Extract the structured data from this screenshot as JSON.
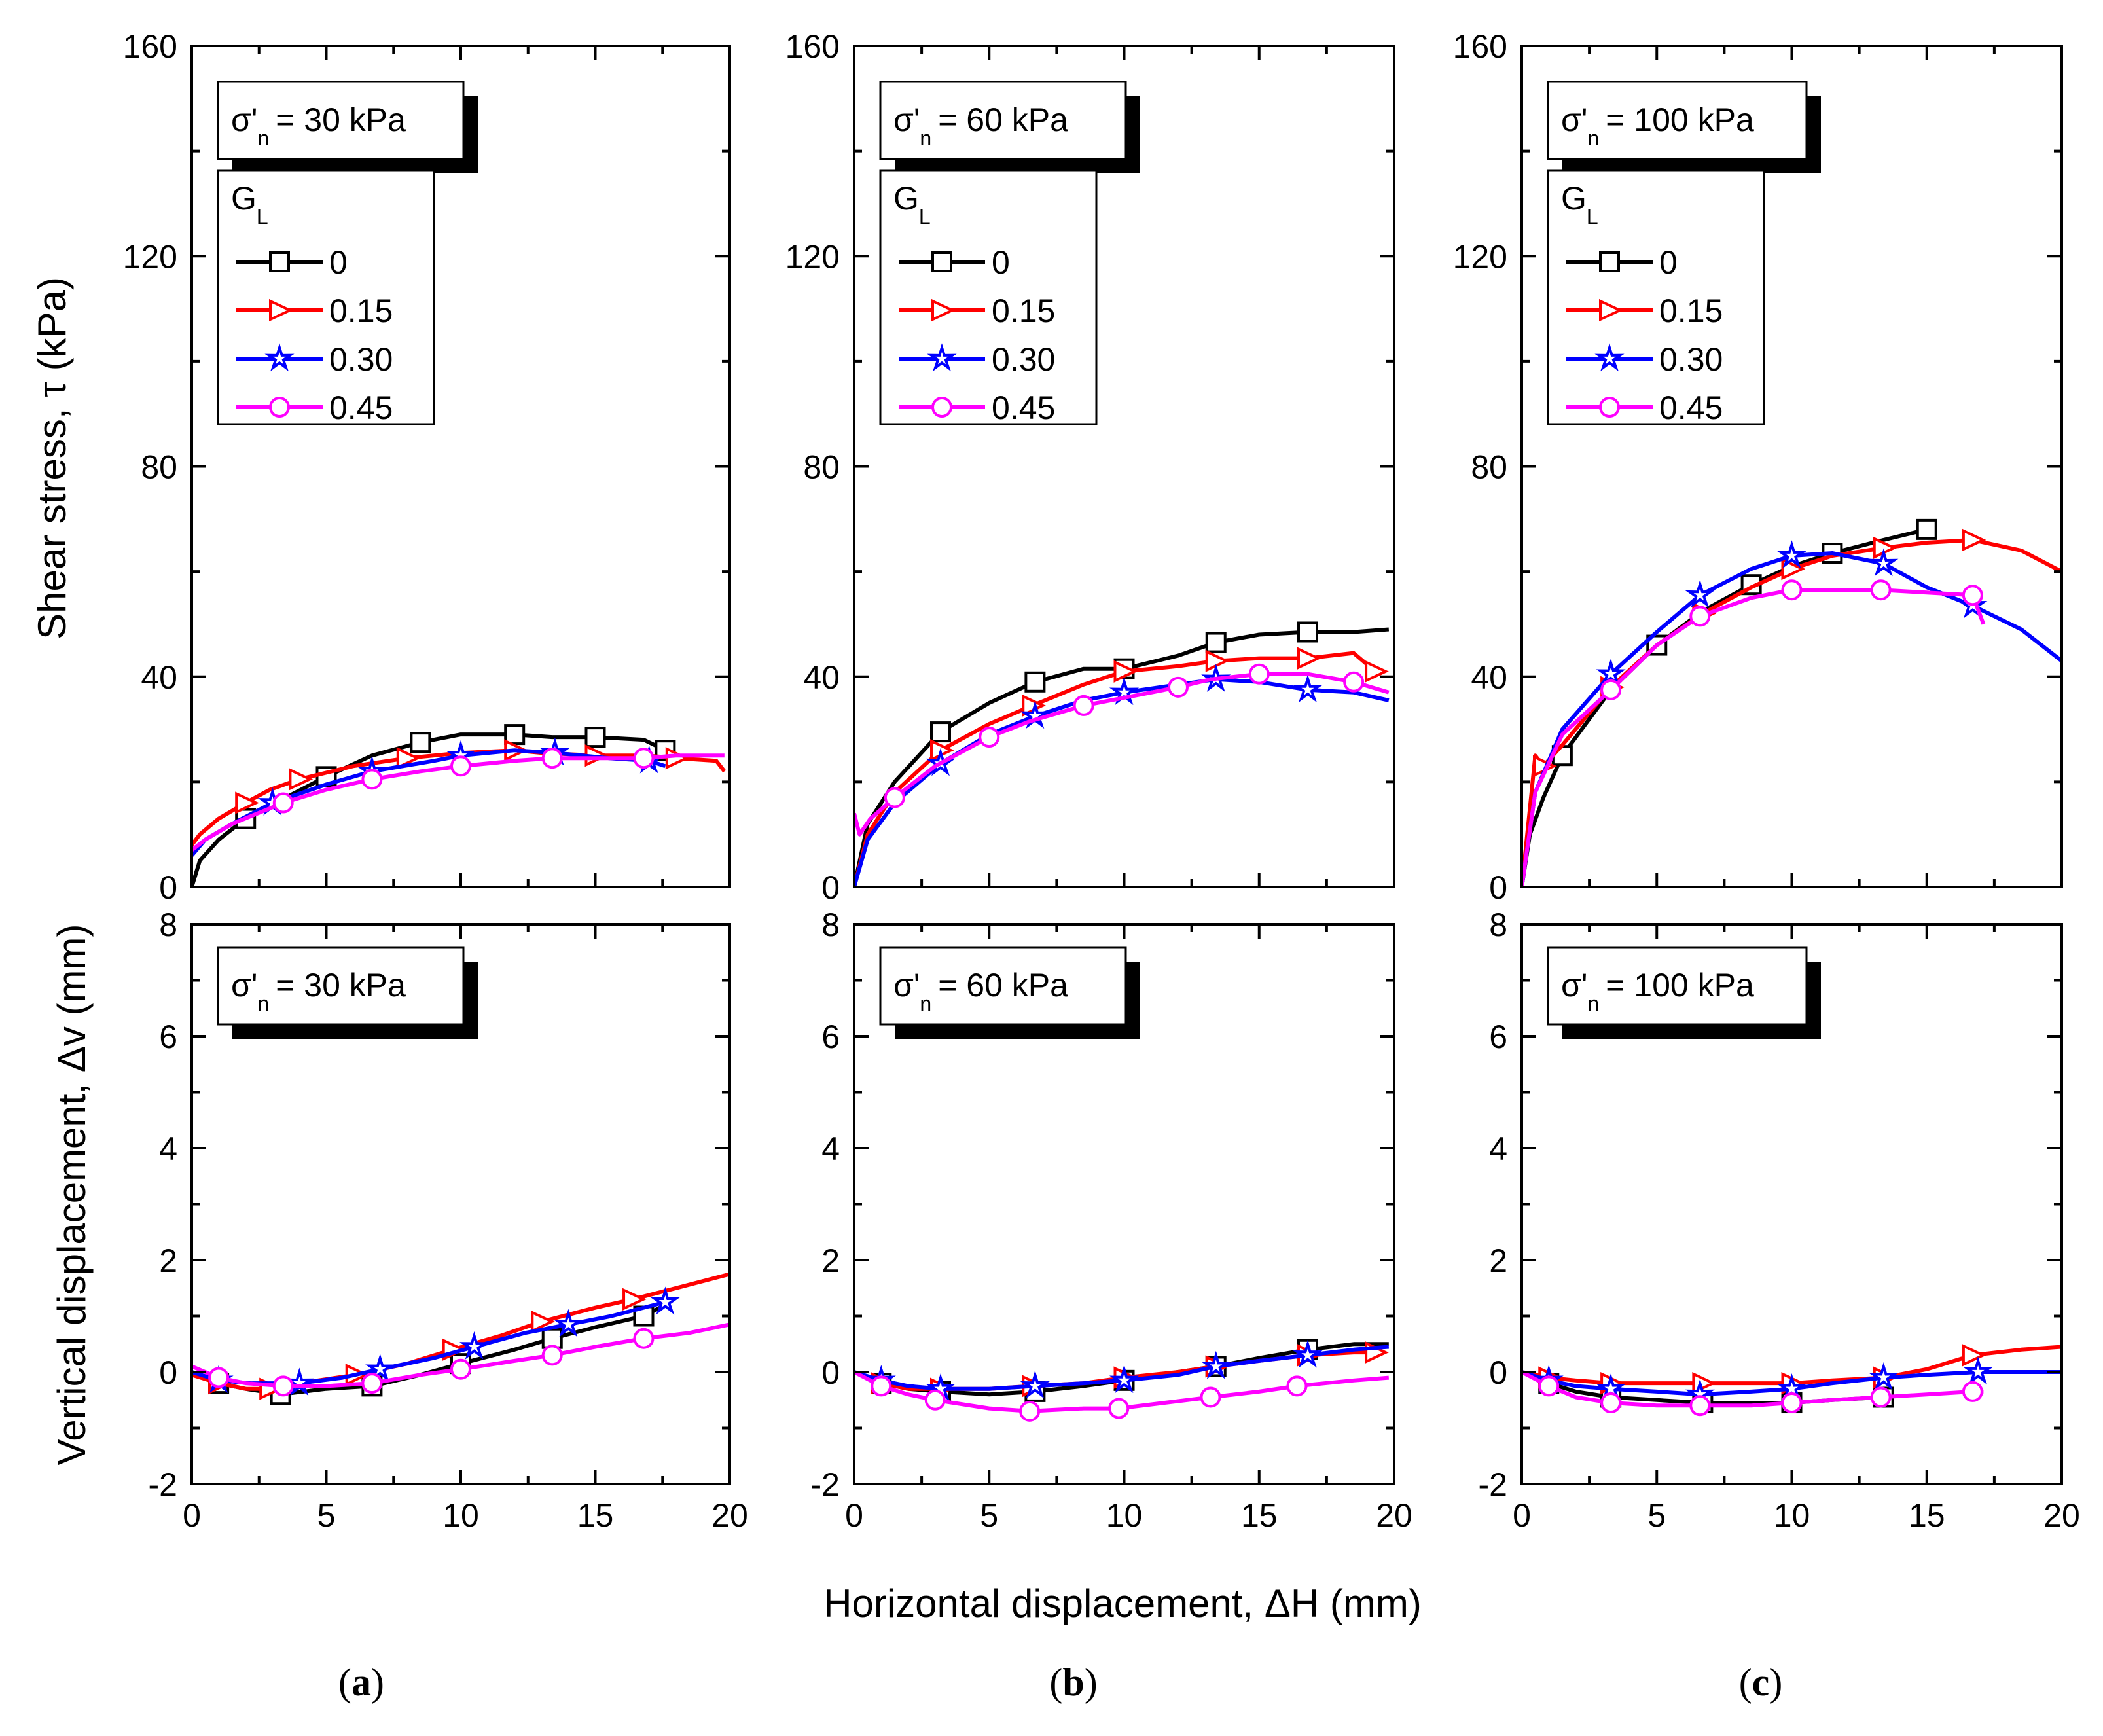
{
  "figure": {
    "ylabel_top": "Shear stress, τ (kPa)",
    "ylabel_bottom": "Vertical displacement, Δv (mm)",
    "xlabel": "Horizontal displacement, ΔH (mm)",
    "legend_title": "G",
    "legend_title_sub": "L",
    "normal_stress_symbol": "σ'",
    "normal_stress_sub": "n",
    "series_colors": {
      "0": "#000000",
      "0.15": "#ff0000",
      "0.30": "#0000ff",
      "0.45": "#ff00ff"
    },
    "series_markers": {
      "0": "square",
      "0.15": "triangle-right",
      "0.30": "star",
      "0.45": "circle"
    }
  },
  "chart_data": [
    {
      "type": "line",
      "panel": "a-shear",
      "annotation": "= 30 kPa",
      "caption": "a",
      "xlim": [
        0,
        20
      ],
      "ylim": [
        0,
        160
      ],
      "xticks": [
        "0",
        "5",
        "10",
        "15",
        "20"
      ],
      "yticks": [
        "0",
        "40",
        "80",
        "120",
        "160"
      ],
      "legend_title": "G_L",
      "series": [
        {
          "name": "0",
          "x": [
            0,
            0.3,
            1,
            2,
            3.3,
            5,
            6.7,
            8.5,
            10,
            12,
            13.4,
            15,
            16.8,
            17.6
          ],
          "values": [
            0,
            5,
            9,
            13,
            16.5,
            21,
            25,
            27.5,
            29,
            29,
            28.5,
            28.5,
            28,
            26
          ]
        },
        {
          "name": "0.15",
          "x": [
            0,
            0.3,
            1,
            2,
            2.9,
            4,
            6,
            8,
            10,
            12,
            13,
            15,
            16.9,
            18,
            19.5,
            19.8
          ],
          "values": [
            8,
            10,
            13,
            16,
            18.5,
            20.5,
            23,
            24.5,
            25.5,
            26,
            25.5,
            25,
            25,
            24.5,
            24,
            22
          ]
        },
        {
          "name": "0.30",
          "x": [
            0,
            0.5,
            1.5,
            3,
            5,
            6.7,
            9,
            10,
            12,
            13.5,
            15.5,
            17,
            17.6
          ],
          "values": [
            6,
            9,
            12,
            16,
            19.5,
            22,
            24,
            25,
            26,
            25.5,
            24.5,
            24,
            23
          ]
        },
        {
          "name": "0.45",
          "x": [
            0,
            0.5,
            1.5,
            3.4,
            5,
            6.7,
            8.5,
            10,
            12,
            13.4,
            15,
            16.8,
            18,
            19.8
          ],
          "values": [
            7,
            9,
            12,
            16,
            18.5,
            20.5,
            22,
            23,
            24,
            24.5,
            24.5,
            24.5,
            25,
            25
          ]
        }
      ]
    },
    {
      "type": "line",
      "panel": "b-shear",
      "annotation": "= 60 kPa",
      "caption": "b",
      "xlim": [
        0,
        20
      ],
      "ylim": [
        0,
        160
      ],
      "xticks": [
        "0",
        "5",
        "10",
        "15",
        "20"
      ],
      "yticks": [
        "0",
        "40",
        "80",
        "120",
        "160"
      ],
      "legend_title": "G_L",
      "series": [
        {
          "name": "0",
          "x": [
            0,
            0.5,
            1.5,
            3.2,
            5,
            6.7,
            8.5,
            10,
            12,
            13.4,
            15,
            16.8,
            18.5,
            19.8
          ],
          "values": [
            0,
            12,
            20,
            29.5,
            35,
            39,
            41.5,
            41.5,
            44,
            46.5,
            48,
            48.5,
            48.5,
            49
          ]
        },
        {
          "name": "0.15",
          "x": [
            0,
            0.5,
            1.5,
            3.2,
            5,
            6.6,
            8.5,
            10,
            12,
            13.4,
            15,
            16.8,
            18.5,
            19.3
          ],
          "values": [
            0,
            10,
            18,
            26,
            31,
            34.5,
            38.5,
            41,
            42,
            43,
            43.5,
            43.5,
            44.5,
            41
          ]
        },
        {
          "name": "0.30",
          "x": [
            0,
            0.5,
            1.5,
            3.2,
            5,
            6.7,
            8.5,
            10,
            12,
            13.4,
            15,
            16.8,
            18.5,
            19.8
          ],
          "values": [
            0,
            9,
            16,
            23.5,
            29,
            32.5,
            35.5,
            37,
            38.5,
            39.5,
            39,
            37.5,
            37,
            35.5
          ]
        },
        {
          "name": "0.45",
          "x": [
            0,
            0.2,
            0.6,
            1.5,
            3,
            5,
            6.5,
            8.5,
            10,
            12,
            13.2,
            15,
            16.8,
            18.5,
            19.8
          ],
          "values": [
            14,
            10,
            13,
            17,
            23,
            28.5,
            31.5,
            34.5,
            36,
            38,
            39.5,
            40.5,
            40.5,
            39,
            37
          ]
        }
      ]
    },
    {
      "type": "line",
      "panel": "c-shear",
      "annotation": "= 100 kPa",
      "caption": "c",
      "xlim": [
        0,
        20
      ],
      "ylim": [
        0,
        160
      ],
      "xticks": [
        "0",
        "5",
        "10",
        "15",
        "20"
      ],
      "yticks": [
        "0",
        "40",
        "80",
        "120",
        "160"
      ],
      "legend_title": "G_L",
      "series": [
        {
          "name": "0",
          "x": [
            0,
            0.3,
            0.8,
            1.5,
            3.3,
            5,
            6.7,
            8.5,
            10,
            11.5,
            13.4,
            15
          ],
          "values": [
            0,
            10,
            17,
            25,
            37.5,
            46,
            52.5,
            57.5,
            61,
            63.5,
            66,
            68
          ]
        },
        {
          "name": "0.15",
          "x": [
            0,
            0.3,
            0.5,
            0.8,
            1.5,
            3.3,
            5,
            6.7,
            8.5,
            10,
            11.5,
            13.4,
            15,
            16.7,
            18.5,
            20
          ],
          "values": [
            0,
            15,
            25,
            23,
            27,
            38,
            46,
            52,
            57,
            60.5,
            63,
            64.5,
            65.5,
            66,
            64,
            60
          ]
        },
        {
          "name": "0.30",
          "x": [
            0,
            0.5,
            1.5,
            3.3,
            5,
            6.6,
            8.5,
            10,
            11.5,
            13.4,
            15,
            16.7,
            18.5,
            20
          ],
          "values": [
            0,
            18,
            30,
            40.5,
            48.5,
            55.5,
            60.5,
            63,
            63.5,
            61.5,
            57,
            53.5,
            49,
            43
          ]
        },
        {
          "name": "0.45",
          "x": [
            0,
            0.5,
            1.5,
            3.3,
            5,
            6.6,
            8.5,
            10,
            11.5,
            13.3,
            15,
            16.7,
            17.1
          ],
          "values": [
            0,
            18,
            29,
            37.5,
            46,
            51.5,
            55,
            56.5,
            56.5,
            56.5,
            56,
            55.5,
            50
          ]
        }
      ]
    },
    {
      "type": "line",
      "panel": "a-vertical",
      "annotation": "= 30 kPa",
      "xlim": [
        0,
        20
      ],
      "ylim": [
        -2,
        8
      ],
      "xticks": [
        "0",
        "5",
        "10",
        "15",
        "20"
      ],
      "yticks": [
        "-2",
        "0",
        "2",
        "4",
        "6",
        "8"
      ],
      "series": [
        {
          "name": "0",
          "x": [
            0,
            1,
            2,
            3.3,
            5,
            6.7,
            8.5,
            10,
            12,
            13.4,
            15,
            16.8,
            17.6
          ],
          "values": [
            0,
            -0.2,
            -0.3,
            -0.4,
            -0.3,
            -0.25,
            -0.05,
            0.15,
            0.4,
            0.6,
            0.8,
            1.0,
            1.2
          ]
        },
        {
          "name": "0.15",
          "x": [
            0,
            1,
            2,
            2.9,
            4,
            6.1,
            8,
            9.7,
            11.5,
            13,
            15,
            16.4,
            18,
            20
          ],
          "values": [
            -0.05,
            -0.2,
            -0.3,
            -0.3,
            -0.2,
            -0.05,
            0.15,
            0.4,
            0.65,
            0.9,
            1.15,
            1.3,
            1.5,
            1.75
          ]
        },
        {
          "name": "0.30",
          "x": [
            0,
            1,
            2.2,
            4,
            5.6,
            7,
            9,
            10.5,
            12.4,
            14,
            15.6,
            17.6
          ],
          "values": [
            0,
            -0.15,
            -0.2,
            -0.2,
            -0.1,
            0.05,
            0.25,
            0.45,
            0.7,
            0.85,
            1.0,
            1.25
          ]
        },
        {
          "name": "0.45",
          "x": [
            0,
            1,
            2,
            3.4,
            5,
            6.7,
            8.5,
            10,
            12,
            13.4,
            15,
            16.8,
            18.5,
            20
          ],
          "values": [
            0.1,
            -0.1,
            -0.2,
            -0.25,
            -0.25,
            -0.2,
            -0.05,
            0.05,
            0.2,
            0.3,
            0.45,
            0.6,
            0.7,
            0.85
          ]
        }
      ]
    },
    {
      "type": "line",
      "panel": "b-vertical",
      "annotation": "= 60 kPa",
      "xlim": [
        0,
        20
      ],
      "ylim": [
        -2,
        8
      ],
      "xticks": [
        "0",
        "5",
        "10",
        "15",
        "20"
      ],
      "yticks": [
        "-2",
        "0",
        "2",
        "4",
        "6",
        "8"
      ],
      "series": [
        {
          "name": "0",
          "x": [
            0,
            1,
            2,
            3.2,
            5,
            6.7,
            8.5,
            10,
            12,
            13.4,
            15,
            16.8,
            18.5,
            19.8
          ],
          "values": [
            0,
            -0.2,
            -0.3,
            -0.35,
            -0.4,
            -0.35,
            -0.25,
            -0.15,
            0,
            0.1,
            0.25,
            0.4,
            0.5,
            0.5
          ]
        },
        {
          "name": "0.15",
          "x": [
            0,
            1,
            2,
            3.2,
            5,
            6.6,
            8.5,
            10,
            12,
            13.4,
            15,
            16.8,
            18.5,
            19.3
          ],
          "values": [
            0,
            -0.2,
            -0.3,
            -0.3,
            -0.3,
            -0.25,
            -0.2,
            -0.1,
            0,
            0.1,
            0.2,
            0.3,
            0.35,
            0.35
          ]
        },
        {
          "name": "0.30",
          "x": [
            0,
            1,
            2,
            3.2,
            5,
            6.7,
            8.5,
            10,
            12,
            13.4,
            15,
            16.8,
            18.5,
            19.8
          ],
          "values": [
            0,
            -0.15,
            -0.25,
            -0.3,
            -0.3,
            -0.25,
            -0.2,
            -0.15,
            -0.05,
            0.1,
            0.2,
            0.3,
            0.4,
            0.45
          ]
        },
        {
          "name": "0.45",
          "x": [
            0,
            1,
            2,
            3,
            5,
            6.5,
            8.5,
            9.8,
            11.5,
            13.2,
            15,
            16.4,
            18.5,
            19.8
          ],
          "values": [
            0,
            -0.25,
            -0.4,
            -0.5,
            -0.65,
            -0.7,
            -0.65,
            -0.65,
            -0.55,
            -0.45,
            -0.35,
            -0.25,
            -0.15,
            -0.1
          ]
        }
      ]
    },
    {
      "type": "line",
      "panel": "c-vertical",
      "annotation": "= 100 kPa",
      "xlim": [
        0,
        20
      ],
      "ylim": [
        -2,
        8
      ],
      "xticks": [
        "0",
        "5",
        "10",
        "15",
        "20"
      ],
      "yticks": [
        "-2",
        "0",
        "2",
        "4",
        "6",
        "8"
      ],
      "series": [
        {
          "name": "0",
          "x": [
            0,
            1,
            2,
            3.3,
            5,
            6.7,
            8.5,
            10,
            11.5,
            13.4
          ],
          "values": [
            0,
            -0.2,
            -0.35,
            -0.45,
            -0.5,
            -0.55,
            -0.55,
            -0.55,
            -0.5,
            -0.45
          ]
        },
        {
          "name": "0.15",
          "x": [
            0,
            1,
            2,
            3.3,
            5,
            6.7,
            8.5,
            10,
            11.5,
            13.4,
            15,
            16.7,
            18.5,
            20
          ],
          "values": [
            0,
            -0.1,
            -0.15,
            -0.2,
            -0.2,
            -0.2,
            -0.2,
            -0.2,
            -0.15,
            -0.1,
            0.05,
            0.3,
            0.4,
            0.45
          ]
        },
        {
          "name": "0.30",
          "x": [
            0,
            1,
            2,
            3.3,
            5,
            6.6,
            8.5,
            10,
            11.5,
            13.4,
            15,
            16.9,
            18.5,
            20
          ],
          "values": [
            0,
            -0.15,
            -0.25,
            -0.3,
            -0.35,
            -0.4,
            -0.35,
            -0.3,
            -0.2,
            -0.1,
            -0.05,
            0,
            0,
            0
          ]
        },
        {
          "name": "0.45",
          "x": [
            0,
            1,
            2,
            3.3,
            5,
            6.6,
            8.5,
            10,
            11.5,
            13.3,
            15,
            16.7,
            17.1
          ],
          "values": [
            0,
            -0.25,
            -0.45,
            -0.55,
            -0.6,
            -0.6,
            -0.6,
            -0.55,
            -0.5,
            -0.45,
            -0.4,
            -0.35,
            -0.35
          ]
        }
      ]
    }
  ]
}
